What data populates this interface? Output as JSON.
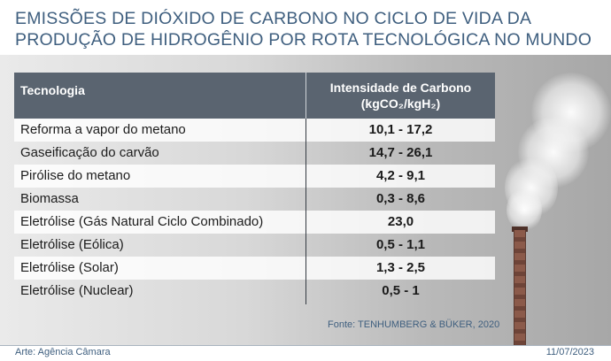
{
  "title": "EMISSÕES DE DIÓXIDO DE CARBONO NO CICLO DE VIDA DA PRODUÇÃO DE HIDROGÊNIO POR ROTA TECNOLÓGICA NO MUNDO",
  "table": {
    "header": {
      "technology": "Tecnologia",
      "intensity_line1": "Intensidade de Carbono",
      "intensity_line2": "(kgCO₂/kgH₂)"
    },
    "rows": [
      {
        "technology": "Reforma a vapor do metano",
        "value": "10,1 - 17,2"
      },
      {
        "technology": "Gaseificação do carvão",
        "value": "14,7 - 26,1"
      },
      {
        "technology": "Pirólise do metano",
        "value": "4,2 - 9,1"
      },
      {
        "technology": "Biomassa",
        "value": "0,3 - 8,6"
      },
      {
        "technology": "Eletrólise (Gás Natural Ciclo Combinado)",
        "value": "23,0"
      },
      {
        "technology": "Eletrólise (Eólica)",
        "value": "0,5 - 1,1"
      },
      {
        "technology": "Eletrólise (Solar)",
        "value": "1,3 - 2,5"
      },
      {
        "technology": "Eletrólise (Nuclear)",
        "value": "0,5 - 1"
      }
    ]
  },
  "source": "Fonte: TENHUMBERG & BÜKER, 2020",
  "credit": "Arte: Agência Câmara",
  "date": "11/07/2023",
  "colors": {
    "title": "#3f5f7f",
    "header_bg": "#5a6470",
    "row_light": "#f3f3f3"
  }
}
